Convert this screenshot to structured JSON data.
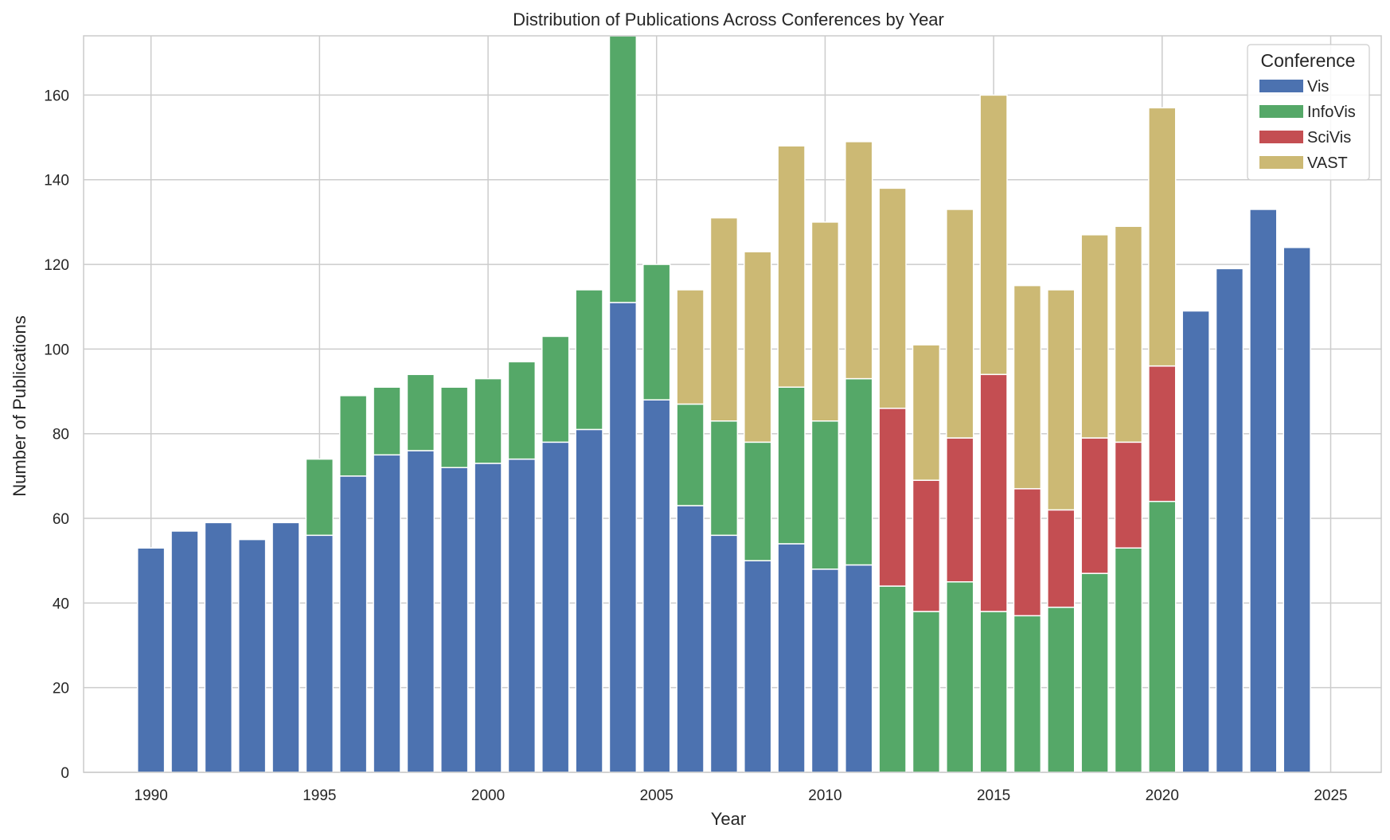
{
  "chart_data": {
    "type": "bar",
    "stacked": true,
    "title": "Distribution of Publications Across Conferences by Year",
    "xlabel": "Year",
    "ylabel": "Number of Publications",
    "xlim": [
      1988,
      2026.5
    ],
    "ylim": [
      0,
      174
    ],
    "x_ticks": [
      1990,
      1995,
      2000,
      2005,
      2010,
      2015,
      2020,
      2025
    ],
    "y_ticks": [
      0,
      20,
      40,
      60,
      80,
      100,
      120,
      140,
      160
    ],
    "grid": true,
    "legend": {
      "title": "Conference",
      "position": "top-right"
    },
    "categories": [
      1990,
      1991,
      1992,
      1993,
      1994,
      1995,
      1996,
      1997,
      1998,
      1999,
      2000,
      2001,
      2002,
      2003,
      2004,
      2005,
      2006,
      2007,
      2008,
      2009,
      2010,
      2011,
      2012,
      2013,
      2014,
      2015,
      2016,
      2017,
      2018,
      2019,
      2020,
      2021,
      2022,
      2023,
      2024
    ],
    "series": [
      {
        "name": "Vis",
        "color": "#4c72b0",
        "values": [
          53,
          57,
          59,
          55,
          59,
          56,
          70,
          75,
          76,
          72,
          73,
          74,
          78,
          81,
          111,
          88,
          63,
          56,
          50,
          54,
          48,
          49,
          0,
          0,
          0,
          0,
          0,
          0,
          0,
          0,
          0,
          109,
          119,
          133,
          124
        ]
      },
      {
        "name": "InfoVis",
        "color": "#55a868",
        "values": [
          0,
          0,
          0,
          0,
          0,
          18,
          19,
          16,
          18,
          19,
          20,
          23,
          25,
          33,
          64,
          32,
          24,
          27,
          28,
          37,
          35,
          44,
          44,
          38,
          45,
          38,
          37,
          39,
          47,
          53,
          64,
          0,
          0,
          0,
          0
        ]
      },
      {
        "name": "SciVis",
        "color": "#c44e52",
        "values": [
          0,
          0,
          0,
          0,
          0,
          0,
          0,
          0,
          0,
          0,
          0,
          0,
          0,
          0,
          0,
          0,
          0,
          0,
          0,
          0,
          0,
          0,
          42,
          31,
          34,
          56,
          30,
          23,
          32,
          25,
          32,
          0,
          0,
          0,
          0
        ]
      },
      {
        "name": "VAST",
        "color": "#ccb974",
        "values": [
          0,
          0,
          0,
          0,
          0,
          0,
          0,
          0,
          0,
          0,
          0,
          0,
          0,
          0,
          0,
          0,
          27,
          48,
          45,
          57,
          47,
          56,
          52,
          32,
          54,
          66,
          48,
          52,
          48,
          51,
          61,
          0,
          0,
          0,
          0
        ]
      }
    ]
  }
}
